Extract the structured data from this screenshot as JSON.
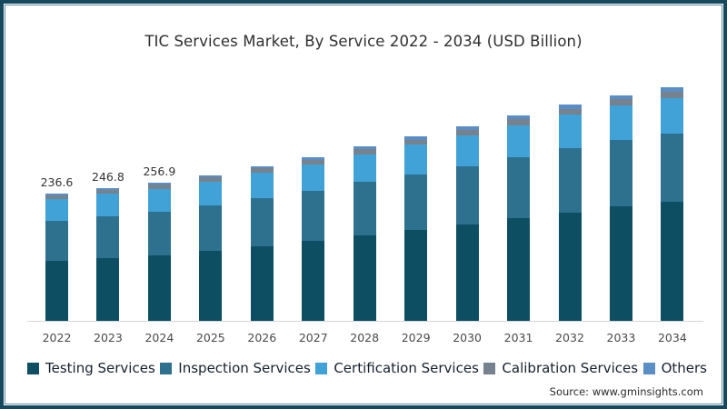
{
  "title": "TIC Services Market, By Service 2022 - 2034 (USD Billion)",
  "source": "Source: www.gminsights.com",
  "frame": {
    "border_color": "#17495e",
    "inner_line_color": "#5d87a0"
  },
  "chart_data": {
    "type": "bar",
    "stacked": true,
    "title": "TIC Services Market, By Service 2022 - 2034 (USD Billion)",
    "xlabel": "",
    "ylabel": "USD Billion",
    "ylim": [
      0,
      450
    ],
    "grid": false,
    "legend_position": "bottom",
    "categories": [
      "2022",
      "2023",
      "2024",
      "2025",
      "2026",
      "2027",
      "2028",
      "2029",
      "2030",
      "2031",
      "2032",
      "2033",
      "2034"
    ],
    "series": [
      {
        "name": "Testing Services",
        "color": "#0d4e63",
        "values": [
          111.3,
          116.8,
          122.4,
          129.6,
          139.1,
          148.2,
          158.8,
          168.8,
          179.1,
          190.4,
          201.7,
          212.3,
          220.8
        ]
      },
      {
        "name": "Inspection Services",
        "color": "#2e718f",
        "values": [
          75.2,
          77.9,
          80.6,
          84.3,
          89.1,
          93.7,
          99.0,
          103.7,
          108.5,
          113.9,
          119.0,
          123.6,
          126.7
        ]
      },
      {
        "name": "Certification Services",
        "color": "#41a2d8",
        "values": [
          40.2,
          41.6,
          42.9,
          44.8,
          47.2,
          49.6,
          52.2,
          54.6,
          57.0,
          59.7,
          62.2,
          64.5,
          66.0
        ]
      },
      {
        "name": "Calibration Services",
        "color": "#76828e",
        "values": [
          6.6,
          6.9,
          7.2,
          7.6,
          8.0,
          8.5,
          9.0,
          9.5,
          10.0,
          10.6,
          11.1,
          11.6,
          12.0
        ]
      },
      {
        "name": "Others",
        "color": "#5a8ec6",
        "values": [
          3.3,
          3.6,
          3.8,
          4.2,
          4.6,
          5.0,
          5.5,
          5.9,
          6.4,
          6.9,
          7.5,
          8.0,
          8.5
        ]
      }
    ],
    "totals": [
      236.6,
      246.8,
      256.9,
      270.5,
      288.0,
      305.0,
      324.5,
      342.5,
      361.0,
      381.5,
      401.5,
      420.0,
      434.0
    ],
    "value_labels": [
      "236.6",
      "246.8",
      "256.9",
      "",
      "",
      "",
      "",
      "",
      "",
      "",
      "",
      "",
      ""
    ]
  }
}
